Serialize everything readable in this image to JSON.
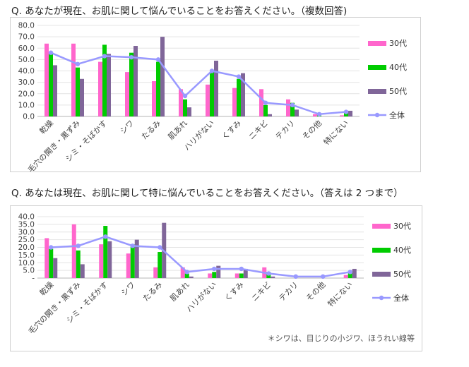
{
  "chart_data": [
    {
      "type": "bar",
      "title": "Q.  あなたが現在、お肌に関して悩んでいることをお答えください。（複数回答)",
      "categories": [
        "乾燥",
        "毛穴の開き・黒ずみ",
        "シミ・そばかす",
        "シワ",
        "たるみ",
        "肌あれ",
        "ハリがない",
        "くすみ",
        "ニキビ",
        "テカリ",
        "その他",
        "特にない"
      ],
      "ylim": [
        0,
        80
      ],
      "ytick_labels": [
        "0.0",
        "10.0",
        "20.0",
        "30.0",
        "40.0",
        "50.0",
        "60.0",
        "70.0",
        "80.0"
      ],
      "grid": true,
      "legend_position": "right",
      "series": [
        {
          "name": "30代",
          "type": "bar",
          "color": "#ff66cc",
          "values": [
            64,
            64,
            48,
            39,
            31,
            24,
            28,
            25,
            24,
            15,
            2,
            1
          ]
        },
        {
          "name": "40代",
          "type": "bar",
          "color": "#00cc00",
          "values": [
            56,
            43,
            63,
            56,
            48,
            15,
            41,
            33,
            10,
            12,
            1,
            3
          ]
        },
        {
          "name": "50代",
          "type": "bar",
          "color": "#806699",
          "values": [
            45,
            33,
            55,
            62,
            70,
            8,
            49,
            38,
            2,
            6,
            0,
            5
          ]
        },
        {
          "name": "全体",
          "type": "line",
          "color": "#9999ff",
          "values": [
            56,
            46,
            53,
            52,
            50,
            18,
            40,
            35,
            12,
            10,
            2,
            4
          ]
        }
      ]
    },
    {
      "type": "bar",
      "title": "Q.  あなたは現在、お肌に関して特に悩んでいることをお答えください。（答えは 2 つまで）",
      "categories": [
        "乾燥",
        "毛穴の開き・黒ずみ",
        "シミ・そばかす",
        "シワ",
        "たるみ",
        "肌あれ",
        "ハリがない",
        "くすみ",
        "ニキビ",
        "テカリ",
        "その他",
        "特にない"
      ],
      "ylim": [
        0,
        40
      ],
      "ytick_labels": [
        "-",
        "5.0",
        "10.0",
        "15.0",
        "20.0",
        "25.0",
        "30.0",
        "35.0",
        "40.0"
      ],
      "grid": true,
      "legend_position": "right",
      "note": "＊シワは、目じりの小ジワ、ほうれい線等",
      "series": [
        {
          "name": "30代",
          "type": "bar",
          "color": "#ff66cc",
          "values": [
            26,
            35,
            22,
            16,
            7,
            7,
            3,
            3,
            7,
            0,
            0,
            2
          ]
        },
        {
          "name": "40代",
          "type": "bar",
          "color": "#00cc00",
          "values": [
            19,
            18,
            34,
            22,
            17,
            3,
            4,
            3,
            4,
            0,
            0,
            4
          ]
        },
        {
          "name": "50代",
          "type": "bar",
          "color": "#806699",
          "values": [
            13,
            9,
            24,
            25,
            36,
            1,
            8,
            6,
            1,
            0,
            0,
            6
          ]
        },
        {
          "name": "全体",
          "type": "line",
          "color": "#9999ff",
          "values": [
            20,
            21,
            27,
            21,
            20,
            4,
            6,
            6,
            3,
            1,
            1,
            4
          ]
        }
      ]
    }
  ]
}
